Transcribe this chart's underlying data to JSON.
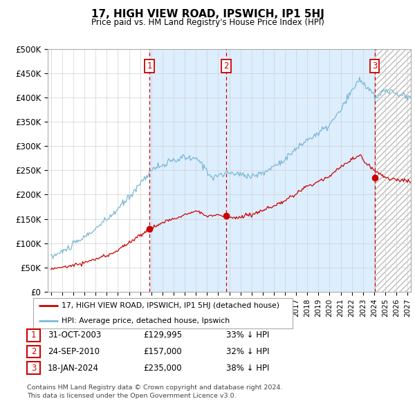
{
  "title": "17, HIGH VIEW ROAD, IPSWICH, IP1 5HJ",
  "subtitle": "Price paid vs. HM Land Registry's House Price Index (HPI)",
  "ylim": [
    0,
    500000
  ],
  "yticks": [
    0,
    50000,
    100000,
    150000,
    200000,
    250000,
    300000,
    350000,
    400000,
    450000,
    500000
  ],
  "legend_line1": "17, HIGH VIEW ROAD, IPSWICH, IP1 5HJ (detached house)",
  "legend_line2": "HPI: Average price, detached house, Ipswich",
  "table_rows": [
    {
      "num": "1",
      "date": "31-OCT-2003",
      "price": "£129,995",
      "hpi": "33% ↓ HPI"
    },
    {
      "num": "2",
      "date": "24-SEP-2010",
      "price": "£157,000",
      "hpi": "32% ↓ HPI"
    },
    {
      "num": "3",
      "date": "18-JAN-2024",
      "price": "£235,000",
      "hpi": "38% ↓ HPI"
    }
  ],
  "footnote1": "Contains HM Land Registry data © Crown copyright and database right 2024.",
  "footnote2": "This data is licensed under the Open Government Licence v3.0.",
  "sale_dates": [
    2003.83,
    2010.73,
    2024.05
  ],
  "sale_prices": [
    129995,
    157000,
    235000
  ],
  "hpi_color": "#7bb8d4",
  "price_color": "#cc0000",
  "shade_color": "#ddeeff",
  "vline_color": "#cc0000",
  "box_color": "#cc0000",
  "xlim_left": 1994.7,
  "xlim_right": 2027.3,
  "hpi_seed": 10,
  "price_seed": 10
}
